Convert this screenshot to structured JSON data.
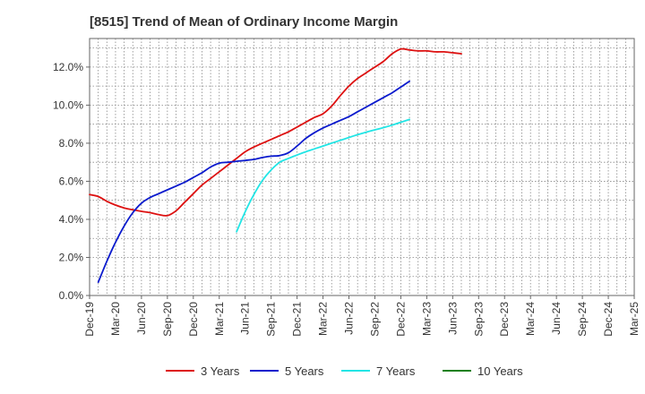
{
  "title": "[8515]  Trend of Mean of Ordinary Income Margin",
  "chart_data": {
    "type": "line",
    "title": "[8515]  Trend of Mean of Ordinary Income Margin",
    "xlabel": "",
    "ylabel": "",
    "x_ticks": [
      "Dec-19",
      "Mar-20",
      "Jun-20",
      "Sep-20",
      "Dec-20",
      "Mar-21",
      "Jun-21",
      "Sep-21",
      "Dec-21",
      "Mar-22",
      "Jun-22",
      "Sep-22",
      "Dec-22",
      "Mar-23",
      "Jun-23",
      "Sep-23",
      "Dec-23",
      "Mar-24",
      "Jun-24",
      "Sep-24",
      "Dec-24",
      "Mar-25"
    ],
    "y_ticks": [
      "0.0%",
      "2.0%",
      "4.0%",
      "6.0%",
      "8.0%",
      "10.0%",
      "12.0%"
    ],
    "ylim": [
      0,
      13.5
    ],
    "y_unit": "%",
    "grid": true,
    "legend_position": "bottom",
    "series": [
      {
        "name": "3 Years",
        "color": "#dd1111",
        "start_index": 0,
        "values": [
          5.3,
          5.2,
          4.95,
          4.75,
          4.6,
          4.5,
          4.42,
          4.35,
          4.25,
          4.2,
          4.45,
          4.9,
          5.35,
          5.8,
          6.15,
          6.5,
          6.85,
          7.2,
          7.55,
          7.8,
          8.0,
          8.2,
          8.4,
          8.6,
          8.85,
          9.1,
          9.35,
          9.55,
          9.95,
          10.5,
          11.0,
          11.4,
          11.7,
          12.0,
          12.3,
          12.7,
          12.95,
          12.9,
          12.85,
          12.85,
          12.8,
          12.8,
          12.75,
          12.7
        ]
      },
      {
        "name": "5 Years",
        "color": "#0a1acd",
        "start_index": 1,
        "values": [
          0.7,
          1.8,
          2.8,
          3.65,
          4.35,
          4.85,
          5.15,
          5.35,
          5.55,
          5.75,
          5.95,
          6.2,
          6.45,
          6.75,
          6.95,
          7.0,
          7.05,
          7.1,
          7.15,
          7.25,
          7.32,
          7.35,
          7.5,
          7.85,
          8.25,
          8.55,
          8.8,
          9.0,
          9.2,
          9.4,
          9.65,
          9.9,
          10.15,
          10.4,
          10.65,
          10.95,
          11.25
        ]
      },
      {
        "name": "7 Years",
        "color": "#22e5e5",
        "start_index": 17,
        "values": [
          3.35,
          4.4,
          5.3,
          6.05,
          6.6,
          7.0,
          7.2,
          7.38,
          7.55,
          7.7,
          7.85,
          8.0,
          8.15,
          8.3,
          8.45,
          8.58,
          8.7,
          8.82,
          8.95,
          9.1,
          9.25
        ]
      },
      {
        "name": "10 Years",
        "color": "#168016",
        "start_index": 0,
        "values": []
      }
    ]
  }
}
